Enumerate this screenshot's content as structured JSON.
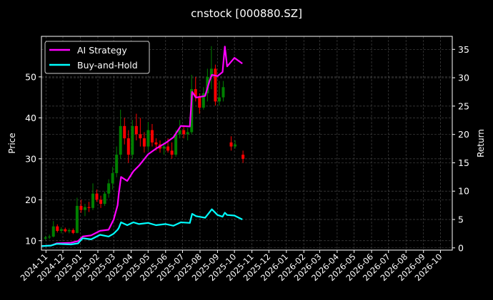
{
  "chart_data": {
    "type": "candlestick+line",
    "title": "cnstock [000880.SZ]",
    "ylabel_left": "Price",
    "ylabel_right": "Return",
    "ylim_left": [
      7.7,
      59.9
    ],
    "ylim_right": [
      -0.4,
      37.3
    ],
    "xlim": [
      "2024-10-24",
      "2026-10-22"
    ],
    "yticks_left": [
      10,
      20,
      30,
      40,
      50
    ],
    "yticks_right": [
      0,
      5,
      10,
      15,
      20,
      25,
      30,
      35
    ],
    "xticks": [
      "2024-11",
      "2024-12",
      "2025-01",
      "2025-02",
      "2025-03",
      "2025-04",
      "2025-05",
      "2025-06",
      "2025-07",
      "2025-08",
      "2025-09",
      "2025-10",
      "2025-11",
      "2025-12",
      "2026-01",
      "2026-02",
      "2026-03",
      "2026-04",
      "2026-05",
      "2026-06",
      "2026-07",
      "2026-08",
      "2026-09",
      "2026-10"
    ],
    "grid": true,
    "legend_placement": "top-left",
    "colors": {
      "up": "#008000",
      "down": "#ff0000",
      "ai": "#ff00ff",
      "bh": "#00ffff",
      "grid": "#444444"
    },
    "candles": [
      [
        "2024-10-28",
        10.5,
        11.2,
        10.2,
        10.8
      ],
      [
        "2024-11-04",
        10.8,
        11.5,
        10.4,
        11.0
      ],
      [
        "2024-11-11",
        11.0,
        14.8,
        10.8,
        13.5
      ],
      [
        "2024-11-18",
        13.5,
        14.0,
        12.0,
        12.4
      ],
      [
        "2024-11-25",
        12.4,
        13.3,
        11.8,
        12.8
      ],
      [
        "2024-12-02",
        12.8,
        13.2,
        12.0,
        12.3
      ],
      [
        "2024-12-09",
        12.3,
        13.0,
        11.8,
        12.6
      ],
      [
        "2024-12-16",
        12.6,
        13.0,
        11.6,
        11.9
      ],
      [
        "2024-12-23",
        11.9,
        20.5,
        11.8,
        18.5
      ],
      [
        "2024-12-30",
        18.5,
        20.0,
        16.8,
        17.5
      ],
      [
        "2025-01-06",
        17.5,
        19.0,
        16.0,
        18.2
      ],
      [
        "2025-01-13",
        18.2,
        19.5,
        17.0,
        18.0
      ],
      [
        "2025-01-20",
        18.0,
        24.0,
        17.5,
        21.5
      ],
      [
        "2025-01-27",
        21.5,
        22.5,
        19.5,
        20.0
      ],
      [
        "2025-02-03",
        20.0,
        21.0,
        18.0,
        19.0
      ],
      [
        "2025-02-10",
        19.0,
        22.0,
        18.5,
        21.5
      ],
      [
        "2025-02-17",
        21.5,
        25.0,
        20.5,
        24.0
      ],
      [
        "2025-02-24",
        24.0,
        28.0,
        22.5,
        26.5
      ],
      [
        "2025-03-03",
        26.5,
        33.0,
        25.5,
        31.0
      ],
      [
        "2025-03-10",
        31.0,
        42.0,
        30.0,
        38.0
      ],
      [
        "2025-03-17",
        38.0,
        40.0,
        33.5,
        35.0
      ],
      [
        "2025-03-24",
        35.0,
        37.0,
        29.0,
        31.0
      ],
      [
        "2025-03-31",
        31.0,
        39.5,
        30.0,
        38.0
      ],
      [
        "2025-04-07",
        38.0,
        41.0,
        34.5,
        36.0
      ],
      [
        "2025-04-14",
        36.0,
        40.0,
        33.0,
        35.0
      ],
      [
        "2025-04-21",
        35.0,
        36.5,
        31.5,
        33.0
      ],
      [
        "2025-04-28",
        33.0,
        39.0,
        32.0,
        37.0
      ],
      [
        "2025-05-05",
        37.0,
        38.5,
        33.0,
        34.0
      ],
      [
        "2025-05-12",
        34.0,
        35.0,
        32.0,
        33.5
      ],
      [
        "2025-05-19",
        33.5,
        34.5,
        31.5,
        32.5
      ],
      [
        "2025-05-26",
        32.5,
        34.0,
        31.0,
        33.0
      ],
      [
        "2025-06-02",
        33.0,
        35.0,
        31.5,
        32.0
      ],
      [
        "2025-06-09",
        32.0,
        34.0,
        30.0,
        31.0
      ],
      [
        "2025-06-16",
        31.0,
        37.0,
        30.5,
        36.0
      ],
      [
        "2025-06-23",
        36.0,
        39.5,
        35.0,
        37.0
      ],
      [
        "2025-06-30",
        37.0,
        38.0,
        35.0,
        36.0
      ],
      [
        "2025-07-07",
        36.0,
        37.5,
        34.5,
        36.5
      ],
      [
        "2025-07-14",
        36.5,
        50.5,
        36.0,
        47.0
      ],
      [
        "2025-07-21",
        47.0,
        50.0,
        44.0,
        45.0
      ],
      [
        "2025-07-28",
        45.0,
        46.0,
        41.0,
        42.5
      ],
      [
        "2025-08-04",
        42.5,
        47.5,
        42.0,
        46.0
      ],
      [
        "2025-08-11",
        46.0,
        52.0,
        44.0,
        50.0
      ],
      [
        "2025-08-18",
        50.0,
        57.5,
        47.0,
        52.0
      ],
      [
        "2025-08-25",
        52.0,
        53.0,
        43.0,
        44.0
      ],
      [
        "2025-09-01",
        44.0,
        49.0,
        43.0,
        45.0
      ],
      [
        "2025-09-08",
        45.0,
        49.0,
        44.0,
        47.5
      ],
      [
        "2025-09-22",
        34.0,
        35.5,
        32.0,
        33.0
      ],
      [
        "2025-09-29",
        33.0,
        34.5,
        32.5,
        33.5
      ],
      [
        "2025-10-13",
        31.0,
        32.0,
        29.0,
        30.0
      ]
    ],
    "series": [
      {
        "name": "AI Strategy",
        "axis": "right",
        "x": [
          "2024-10-24",
          "2024-11-10",
          "2024-11-20",
          "2024-12-15",
          "2024-12-28",
          "2025-01-05",
          "2025-01-20",
          "2025-02-05",
          "2025-02-20",
          "2025-03-01",
          "2025-03-08",
          "2025-03-10",
          "2025-03-14",
          "2025-03-25",
          "2025-04-05",
          "2025-04-15",
          "2025-05-01",
          "2025-05-15",
          "2025-06-01",
          "2025-06-15",
          "2025-06-28",
          "2025-07-14",
          "2025-07-18",
          "2025-07-25",
          "2025-08-10",
          "2025-08-18",
          "2025-08-22",
          "2025-09-01",
          "2025-09-10",
          "2025-09-14",
          "2025-09-18",
          "2025-10-01",
          "2025-10-15"
        ],
        "values": [
          0.3,
          0.4,
          0.8,
          0.9,
          1.2,
          2.0,
          2.2,
          3.0,
          3.2,
          5.0,
          7.5,
          9.5,
          12.5,
          11.8,
          13.5,
          14.5,
          16.5,
          17.5,
          18.5,
          19.5,
          21.5,
          21.4,
          27.5,
          26.5,
          26.8,
          29.5,
          30.5,
          30.3,
          31.0,
          35.5,
          32.0,
          33.5,
          32.5
        ]
      },
      {
        "name": "Buy-and-Hold",
        "axis": "right",
        "x": [
          "2024-10-24",
          "2024-11-10",
          "2024-11-20",
          "2024-12-15",
          "2024-12-28",
          "2025-01-05",
          "2025-01-20",
          "2025-02-05",
          "2025-02-20",
          "2025-03-01",
          "2025-03-08",
          "2025-03-10",
          "2025-03-14",
          "2025-03-25",
          "2025-04-05",
          "2025-04-15",
          "2025-05-01",
          "2025-05-15",
          "2025-06-01",
          "2025-06-15",
          "2025-06-28",
          "2025-07-14",
          "2025-07-18",
          "2025-07-25",
          "2025-08-10",
          "2025-08-18",
          "2025-08-22",
          "2025-09-01",
          "2025-09-10",
          "2025-09-14",
          "2025-09-18",
          "2025-10-01",
          "2025-10-15"
        ],
        "values": [
          0.3,
          0.4,
          0.7,
          0.6,
          0.8,
          1.7,
          1.5,
          2.3,
          2.0,
          2.5,
          3.2,
          3.5,
          4.5,
          4.0,
          4.5,
          4.2,
          4.4,
          4.0,
          4.2,
          3.9,
          4.5,
          4.4,
          6.0,
          5.6,
          5.3,
          6.3,
          6.8,
          5.8,
          5.5,
          6.2,
          5.8,
          5.7,
          5.0
        ]
      }
    ]
  }
}
